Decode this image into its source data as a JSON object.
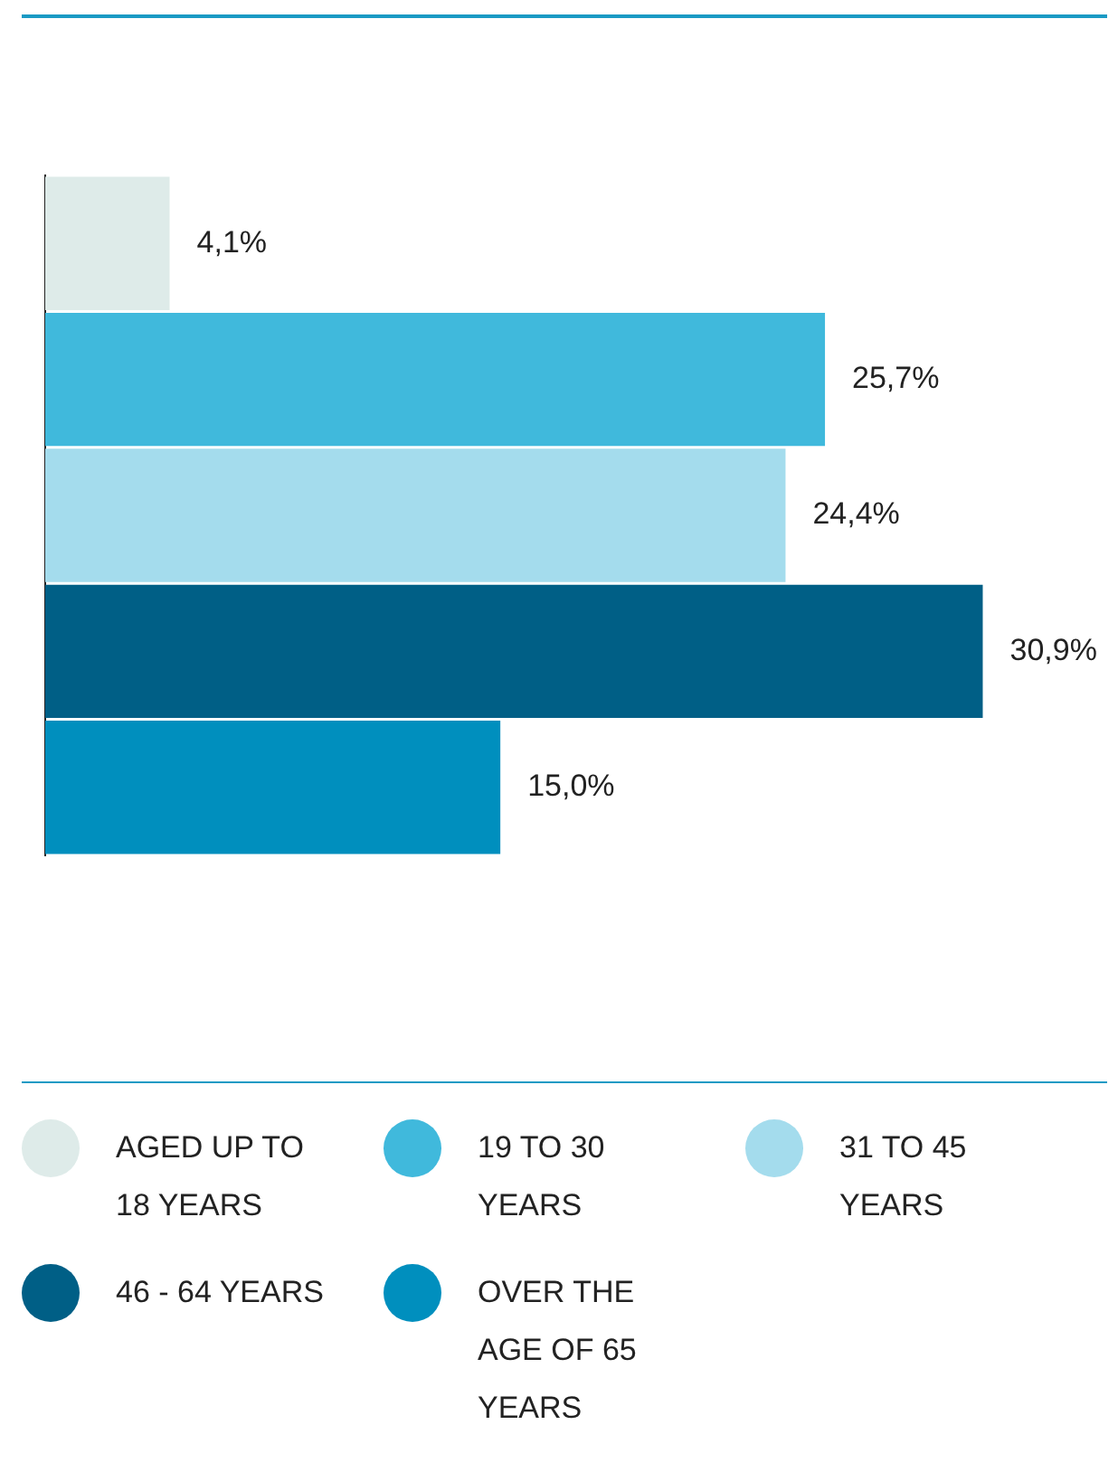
{
  "chart_data": {
    "type": "bar",
    "orientation": "horizontal",
    "categories": [
      null
    ],
    "series": [
      {
        "name": "AGED UP TO 18 YEARS",
        "color": "#deebe9",
        "values": [
          4.1
        ],
        "value_labels": [
          "4,1%"
        ]
      },
      {
        "name": "19  TO 30 YEARS",
        "color": "#40b9dc",
        "values": [
          25.7
        ],
        "value_labels": [
          "25,7%"
        ]
      },
      {
        "name": "31 TO 45 YEARS",
        "color": "#a4dced",
        "values": [
          24.4
        ],
        "value_labels": [
          "24,4%"
        ]
      },
      {
        "name": "46 - 64 YEARS",
        "color": "#005f86",
        "values": [
          30.9
        ],
        "value_labels": [
          "30,9%"
        ]
      },
      {
        "name": "OVER THE AGE OF 65 YEARS",
        "color": "#008fbe",
        "values": [
          15.0
        ],
        "value_labels": [
          "15,0%"
        ]
      }
    ],
    "tick_labels": false,
    "grid": false,
    "legend": "bottom"
  }
}
